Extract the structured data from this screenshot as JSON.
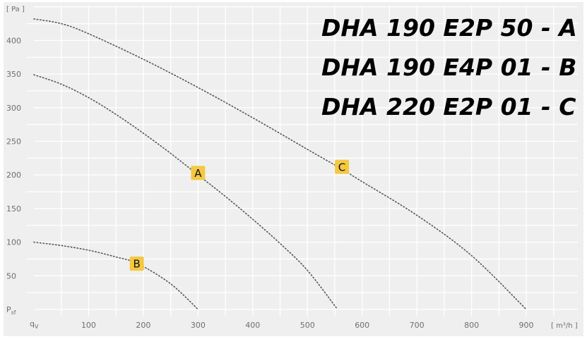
{
  "chart_data": {
    "type": "line",
    "title": "",
    "xlabel": "[ m³/h ]",
    "xlabel_short": "qV",
    "ylabel": "[ Pa ]",
    "ylabel_short": "Psf",
    "xlim": [
      0,
      1000
    ],
    "ylim": [
      0,
      450
    ],
    "x_ticks": [
      100,
      200,
      300,
      400,
      500,
      600,
      700,
      800,
      900
    ],
    "y_ticks": [
      50,
      100,
      150,
      200,
      250,
      300,
      350,
      400
    ],
    "grid": true,
    "line_style": "dotted",
    "series": [
      {
        "name": "DHA 190 E2P 50 - A",
        "label": "A",
        "x": [
          0,
          50,
          100,
          150,
          200,
          250,
          300,
          350,
          400,
          450,
          500,
          555
        ],
        "y": [
          349,
          335,
          315,
          290,
          262,
          232,
          200,
          168,
          134,
          98,
          58,
          0
        ]
      },
      {
        "name": "DHA 190 E4P 01 - B",
        "label": "B",
        "x": [
          0,
          50,
          100,
          150,
          190,
          250,
          300
        ],
        "y": [
          100,
          95,
          88,
          78,
          68,
          38,
          0
        ]
      },
      {
        "name": "DHA 220 E2P 01 - C",
        "label": "C",
        "x": [
          0,
          50,
          100,
          200,
          300,
          400,
          500,
          560,
          600,
          700,
          800,
          900
        ],
        "y": [
          432,
          425,
          410,
          372,
          330,
          285,
          238,
          210,
          190,
          140,
          80,
          0
        ]
      }
    ],
    "annotations": [
      {
        "text": "A",
        "x": 300,
        "y": 203,
        "color": "#f5c842"
      },
      {
        "text": "B",
        "x": 188,
        "y": 68,
        "color": "#f5c842"
      },
      {
        "text": "C",
        "x": 563,
        "y": 212,
        "color": "#f5c842"
      }
    ],
    "legend": [
      "DHA 190 E2P 50 - A",
      "DHA 190 E4P 01 - B",
      "DHA 220 E2P 01 - C"
    ],
    "legend_position": "top-right"
  },
  "axis": {
    "y_unit": "[ Pa ]",
    "x_unit": "[ m³/h ]",
    "origin_x_label": "qV",
    "origin_y_label": "Psf"
  },
  "legend": {
    "items": [
      "DHA 190 E2P 50 - A",
      "DHA 190 E4P 01 - B",
      "DHA 220 E2P 01 - C"
    ]
  },
  "colors": {
    "background": "#efefef",
    "grid": "#ffffff",
    "curve": "#555555",
    "badge": "#f5c842",
    "tick_text": "#6e6e6e"
  }
}
